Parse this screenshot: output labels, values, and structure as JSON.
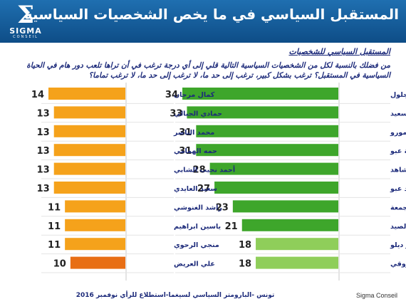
{
  "header": {
    "title": "المستقبل السياسي  في ما يخص الشخصيات السياسية",
    "logo_word": "SIGMA",
    "logo_sub": "CONSEIL"
  },
  "subtitle": "المستقبل السياسي للشخصيات",
  "question": "من فضلك بالنسبة لكل من الشخصيات السياسية التالية قلي إلى أي درجة ترغب في أن تراها تلعب دور هام في الحياة السياسية في المستقبل؟ ترغب بشكل كبير، ترغب إلى حد ما، لا ترغب إلى حد ما، لا ترغب تماما؟",
  "footer": "تونس  -البارومتر السياسي لسيغما-استطلاع للرأي نوفمبر 2016",
  "brand": "Sigma Conseil",
  "colors": {
    "green_dark": "#3ea62b",
    "green_light": "#8fce5a",
    "orange": "#f5a21b",
    "orange_dark": "#e86e14"
  },
  "chart_data": [
    {
      "type": "bar",
      "orientation": "horizontal",
      "categories": [
        "ناجي جلول",
        "الصافي سعيد",
        "عبدالفتاح مورو",
        "سامية عبو",
        "يوسف الشاهد",
        "محمد عبو",
        "مهدي جمعة",
        "الحبيب الصيد",
        "سمير ديلو",
        "المنصف المرزوقي"
      ],
      "values": [
        34,
        33,
        31,
        31,
        28,
        27,
        23,
        21,
        18,
        18
      ],
      "colors": [
        "#3ea62b",
        "#3ea62b",
        "#3ea62b",
        "#3ea62b",
        "#3ea62b",
        "#3ea62b",
        "#3ea62b",
        "#3ea62b",
        "#8fce5a",
        "#8fce5a"
      ],
      "value_labels": [
        "34",
        "33",
        "31",
        "31",
        "28",
        "27",
        "23",
        "21",
        "18",
        "18"
      ]
    },
    {
      "type": "bar",
      "orientation": "horizontal",
      "categories": [
        "كمال مرجان",
        "حمادي الجبالي",
        "محمد الناصر",
        "حمه الهمامي",
        "أحمد نجيب الشابي",
        "سعيد العايدي",
        "راشد الغنوشي",
        "ياسين ابراهيم",
        "منجي الرحوي",
        "علي العريض"
      ],
      "values": [
        14,
        13,
        13,
        13,
        13,
        13,
        11,
        11,
        11,
        10
      ],
      "colors": [
        "#f5a21b",
        "#f5a21b",
        "#f5a21b",
        "#f5a21b",
        "#f5a21b",
        "#f5a21b",
        "#f5a21b",
        "#f5a21b",
        "#f5a21b",
        "#e86e14"
      ],
      "value_labels": [
        "14",
        "13",
        "13",
        "13",
        "13",
        "13",
        "11",
        "11",
        "11",
        "10"
      ]
    }
  ]
}
